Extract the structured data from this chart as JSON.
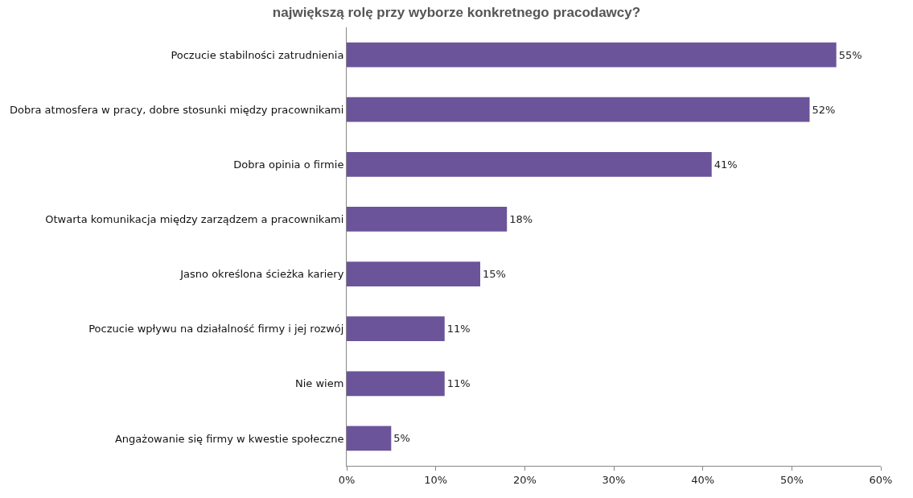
{
  "chart_data": {
    "type": "bar",
    "orientation": "horizontal",
    "title": "największą rolę przy wyborze konkretnego pracodawcy?",
    "categories": [
      "Poczucie stabilności zatrudnienia",
      "Dobra atmosfera w pracy, dobre stosunki między pracownikami",
      "Dobra opinia o firmie",
      "Otwarta komunikacja między zarządzem a pracownikami",
      "Jasno określona ścieżka kariery",
      "Poczucie wpływu na działalność firmy i jej rozwój",
      "Nie wiem",
      "Angażowanie się firmy w kwestie społeczne"
    ],
    "values": [
      55,
      52,
      41,
      18,
      15,
      11,
      11,
      5
    ],
    "value_labels": [
      "55%",
      "52%",
      "41%",
      "18%",
      "15%",
      "11%",
      "11%",
      "5%"
    ],
    "color": "#6b5499",
    "xlim": [
      0,
      60
    ],
    "xticks": [
      {
        "value": 0,
        "label": "0%"
      },
      {
        "value": 10,
        "label": "10%"
      },
      {
        "value": 20,
        "label": "20%"
      },
      {
        "value": 30,
        "label": "30%"
      },
      {
        "value": 40,
        "label": "40%"
      },
      {
        "value": 50,
        "label": "50%"
      },
      {
        "value": 60,
        "label": "60%"
      }
    ],
    "grid": false,
    "legend": false
  }
}
